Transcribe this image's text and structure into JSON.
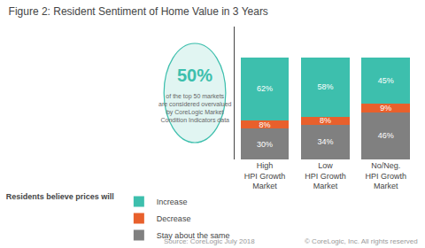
{
  "chart_data": {
    "type": "bar",
    "title": "Figure 2: Resident Sentiment of Home Value in 3 Years",
    "categories": [
      "High\nHPI Growth\nMarket",
      "Low\nHPI Growth\nMarket",
      "No/Neg.\nHPI Growth\nMarket"
    ],
    "series": [
      {
        "name": "Stay about the same",
        "color": "#808080",
        "values": [
          30,
          34,
          46
        ],
        "value_labels": [
          "30%",
          "34%",
          "46%"
        ]
      },
      {
        "name": "Decrease",
        "color": "#e8602c",
        "values": [
          8,
          8,
          9
        ],
        "value_labels": [
          "8%",
          "8%",
          "9%"
        ]
      },
      {
        "name": "Increase",
        "color": "#3dbfad",
        "values": [
          62,
          58,
          45
        ],
        "value_labels": [
          "62%",
          "58%",
          "45%"
        ]
      }
    ],
    "legend_title": "Residents believe prices will",
    "annotations": [
      "50%",
      "of the top 50 markets\nare considered overvalued\nby CoreLogic Market\nCondition Indicators data",
      "Source: CoreLogic July 2018",
      "© CoreLogic, Inc. All rights reserved"
    ],
    "stacked": true,
    "data_labels": true,
    "ylim": [
      0,
      130
    ],
    "grid": false,
    "legend": "bottom",
    "tick_labels": "x"
  }
}
